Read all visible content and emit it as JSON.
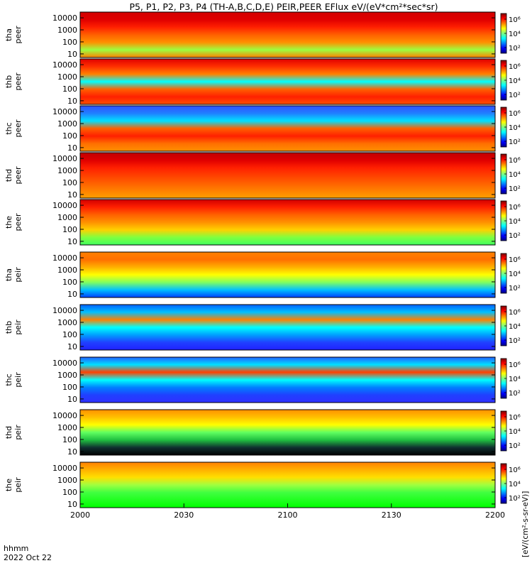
{
  "chart_data": {
    "type": "heatmap",
    "title": "P5, P1, P2, P3, P4 (TH-A,B,C,D,E) PEIR,PEER EFlux eV/(eV*cm²*sec*sr)",
    "x_ticks": [
      "2000",
      "2030",
      "2100",
      "2130",
      "2200"
    ],
    "x_range": [
      "2000",
      "2200"
    ],
    "x_label_main": "hhmm",
    "x_label_date": "2022 Oct 22",
    "y_ticks": [
      "10000",
      "1000",
      "100",
      "10"
    ],
    "y_scale": "log",
    "y_range": [
      5,
      30000
    ],
    "colorbar_ticks": [
      "10⁶",
      "10⁴",
      "10²"
    ],
    "colorbar_label": "[eV/(cm²-s-sr-eV)]",
    "colorscale": [
      "#000080",
      "#0000ff",
      "#0080ff",
      "#00ffff",
      "#80ff80",
      "#ffff00",
      "#ff8000",
      "#ff0000",
      "#800000"
    ],
    "panels": [
      {
        "probe": "tha",
        "species": "peer",
        "label": "tha\npeer",
        "line1": "tha",
        "line2": "peer"
      },
      {
        "probe": "thb",
        "species": "peer",
        "label": "thb\npeer",
        "line1": "thb",
        "line2": "peer"
      },
      {
        "probe": "thc",
        "species": "peer",
        "label": "thc\npeer",
        "line1": "thc",
        "line2": "peer"
      },
      {
        "probe": "thd",
        "species": "peer",
        "label": "thd\npeer",
        "line1": "thd",
        "line2": "peer"
      },
      {
        "probe": "the",
        "species": "peer",
        "label": "the\npeer",
        "line1": "the",
        "line2": "peer"
      },
      {
        "probe": "tha",
        "species": "peir",
        "label": "tha\npeir",
        "line1": "tha",
        "line2": "peir"
      },
      {
        "probe": "thb",
        "species": "peir",
        "label": "thb\npeir",
        "line1": "thb",
        "line2": "peir"
      },
      {
        "probe": "thc",
        "species": "peir",
        "label": "thc\npeir",
        "line1": "thc",
        "line2": "peir"
      },
      {
        "probe": "thd",
        "species": "peir",
        "label": "thd\npeir",
        "line1": "thd",
        "line2": "peir"
      },
      {
        "probe": "the",
        "species": "peir",
        "label": "the\npeir",
        "line1": "the",
        "line2": "peir"
      }
    ]
  }
}
